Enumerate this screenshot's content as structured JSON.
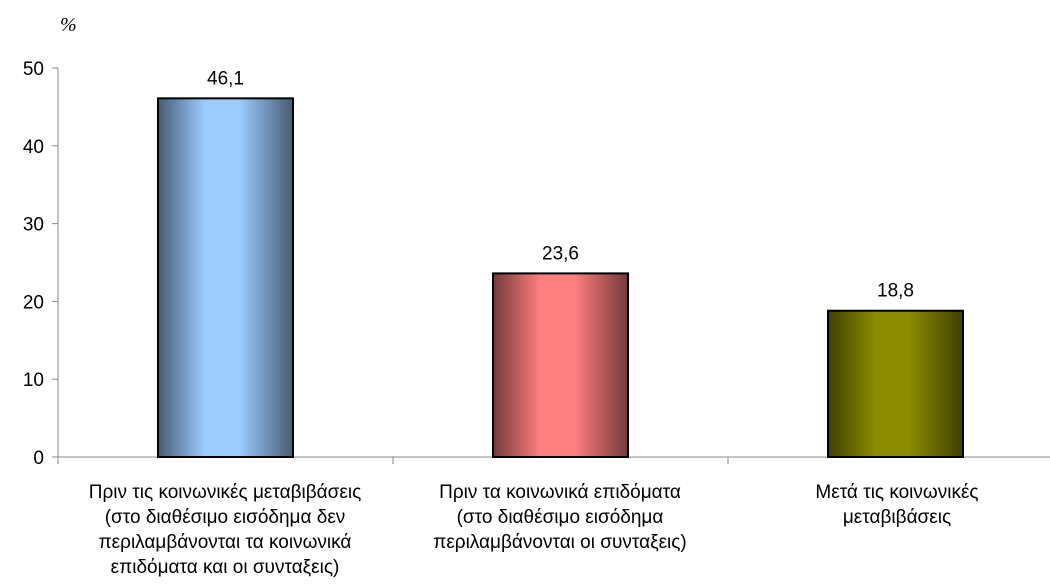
{
  "chart_data": {
    "type": "bar",
    "unit_label": "%",
    "categories": [
      "Πριν τις κοινωνικές μεταβιβάσεις\n(στο διαθέσιμο εισόδημα δεν\nπεριλαμβάνονται τα κοινωνικά\nεπιδόματα και οι συνταξεις)",
      "Πριν τα κοινωνικά επιδόματα\n(στο διαθέσιμο εισόδημα\nπεριλαμβάνονται οι συνταξεις)",
      "Μετά τις κοινωνικές\nμεταβιβάσεις"
    ],
    "values": [
      46.1,
      23.6,
      18.8
    ],
    "value_labels": [
      "46,1",
      "23,6",
      "18,8"
    ],
    "ylim": [
      0,
      50
    ],
    "yticks": [
      "0",
      "10",
      "20",
      "30",
      "40",
      "50"
    ],
    "grid": false,
    "bar_colors": [
      "#9cccff",
      "#ff7f80",
      "#8c8c00"
    ]
  }
}
